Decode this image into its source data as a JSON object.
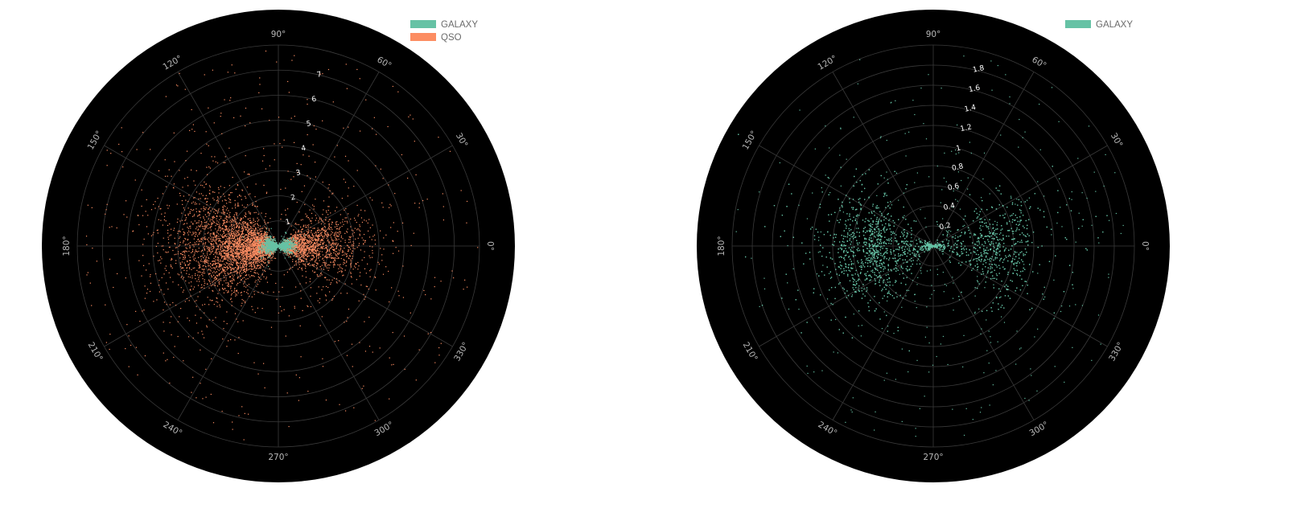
{
  "colors": {
    "background": "#ffffff",
    "plot_bg": "#000000",
    "grid": "#3a3a3a",
    "galaxy": "#66c2a5",
    "qso": "#fc8d62"
  },
  "chart_data": [
    {
      "type": "scatter",
      "subtype": "polar",
      "title": "",
      "angular_axis": {
        "unit": "degrees",
        "tick_labels": [
          "0°",
          "30°",
          "60°",
          "90°",
          "120°",
          "150°",
          "180°",
          "210°",
          "240°",
          "270°",
          "300°",
          "330°"
        ]
      },
      "radial_axis": {
        "range": [
          0,
          8
        ],
        "tick_labels": [
          "1",
          "2",
          "3",
          "4",
          "5",
          "6",
          "7"
        ]
      },
      "legend": {
        "placement": "top-right",
        "entries": [
          "GALAXY",
          "QSO"
        ]
      },
      "series": [
        {
          "name": "GALAXY",
          "color": "#66c2a5",
          "description_points": [
            {
              "theta_deg": 160,
              "r": 0.3
            },
            {
              "theta_deg": 180,
              "r": 0.5
            },
            {
              "theta_deg": 200,
              "r": 0.4
            },
            {
              "theta_deg": 10,
              "r": 0.4
            },
            {
              "theta_deg": 350,
              "r": 0.5
            },
            {
              "theta_deg": 20,
              "r": 0.3
            }
          ]
        },
        {
          "name": "QSO",
          "color": "#fc8d62",
          "description_points": [
            {
              "theta_deg": 150,
              "r": 3.5
            },
            {
              "theta_deg": 165,
              "r": 3.0
            },
            {
              "theta_deg": 180,
              "r": 2.5
            },
            {
              "theta_deg": 200,
              "r": 2.5
            },
            {
              "theta_deg": 215,
              "r": 2.8
            },
            {
              "theta_deg": 10,
              "r": 2.0
            },
            {
              "theta_deg": 350,
              "r": 2.0
            },
            {
              "theta_deg": 25,
              "r": 1.5
            },
            {
              "theta_deg": 335,
              "r": 1.5
            }
          ]
        }
      ]
    },
    {
      "type": "scatter",
      "subtype": "polar",
      "title": "",
      "angular_axis": {
        "unit": "degrees",
        "tick_labels": [
          "0°",
          "30°",
          "60°",
          "90°",
          "120°",
          "150°",
          "180°",
          "210°",
          "240°",
          "270°",
          "300°",
          "330°"
        ]
      },
      "radial_axis": {
        "range": [
          0,
          2.0
        ],
        "tick_labels": [
          "0.2",
          "0.4",
          "0.6",
          "0.8",
          "1",
          "1.2",
          "1.4",
          "1.6",
          "1.8"
        ]
      },
      "legend": {
        "placement": "top-right",
        "entries": [
          "GALAXY"
        ]
      },
      "series": [
        {
          "name": "GALAXY",
          "color": "#66c2a5",
          "description_points": [
            {
              "theta_deg": 155,
              "r": 1.2
            },
            {
              "theta_deg": 170,
              "r": 0.9
            },
            {
              "theta_deg": 180,
              "r": 0.8
            },
            {
              "theta_deg": 195,
              "r": 0.9
            },
            {
              "theta_deg": 210,
              "r": 1.1
            },
            {
              "theta_deg": 20,
              "r": 0.8
            },
            {
              "theta_deg": 0,
              "r": 0.6
            },
            {
              "theta_deg": 340,
              "r": 0.8
            }
          ]
        }
      ]
    }
  ]
}
